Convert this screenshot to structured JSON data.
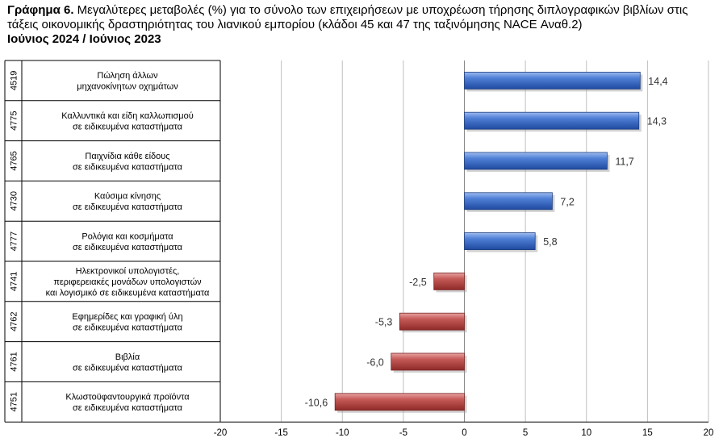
{
  "title": {
    "prefix": "Γράφημα 6.",
    "text": " Μεγαλύτερες μεταβολές (%) για το σύνολο των επιχειρήσεων με υποχρέωση τήρησης διπλογραφικών βιβλίων στις τάξεις οικονομικής δραστηριότητας του λιανικού εμπορίου (κλάδοι 45 και 47 της ταξινόμησης NACE Αναθ.2)",
    "period": "Ιούνιος 2024 / Ιούνιος 2023"
  },
  "colors": {
    "positive": "#4472C4",
    "negative": "#C0504D",
    "grid": "#bfbfbf"
  },
  "chart_data": {
    "type": "bar",
    "orientation": "horizontal",
    "codes": [
      "4519",
      "4775",
      "4765",
      "4730",
      "4777",
      "4741",
      "4762",
      "4761",
      "4751"
    ],
    "categories": [
      [
        "Πώληση άλλων",
        "μηχανοκίνητων οχημάτων"
      ],
      [
        "Καλλυντικά και είδη καλλωπισμού",
        "σε ειδικευμένα καταστήματα"
      ],
      [
        "Παιχνίδια κάθε είδους",
        "σε ειδικευμένα καταστήματα"
      ],
      [
        "Καύσιμα κίνησης",
        "σε ειδικευμένα καταστήματα"
      ],
      [
        "Ρολόγια και κοσμήματα",
        "σε ειδικευμένα καταστήματα"
      ],
      [
        "Ηλεκτρονικοί υπολογιστές,",
        "περιφερειακές μονάδων υπολογιστών",
        "και λογισμικό σε ειδικευμένα καταστήματα"
      ],
      [
        "Εφημερίδες και γραφική ύλη",
        "σε ειδικευμένα καταστήματα"
      ],
      [
        "Βιβλία",
        "σε ειδικευμένα καταστήματα"
      ],
      [
        "Κλωστοϋφαντουργικά προϊόντα",
        "σε ειδικευμένα καταστήματα"
      ]
    ],
    "values": [
      14.4,
      14.3,
      11.7,
      7.2,
      5.8,
      -2.5,
      -5.3,
      -6.0,
      -10.6
    ],
    "value_labels": [
      "14,4",
      "14,3",
      "11,7",
      "7,2",
      "5,8",
      "-2,5",
      "-5,3",
      "-6,0",
      "-10,6"
    ],
    "xlim": [
      -20,
      20
    ],
    "ticks": [
      -20,
      -15,
      -10,
      -5,
      0,
      5,
      10,
      15,
      20
    ],
    "tick_labels": [
      "-20",
      "-15",
      "-10",
      "-5",
      "0",
      "5",
      "10",
      "15",
      "20"
    ],
    "grid": true,
    "legend": "none"
  }
}
